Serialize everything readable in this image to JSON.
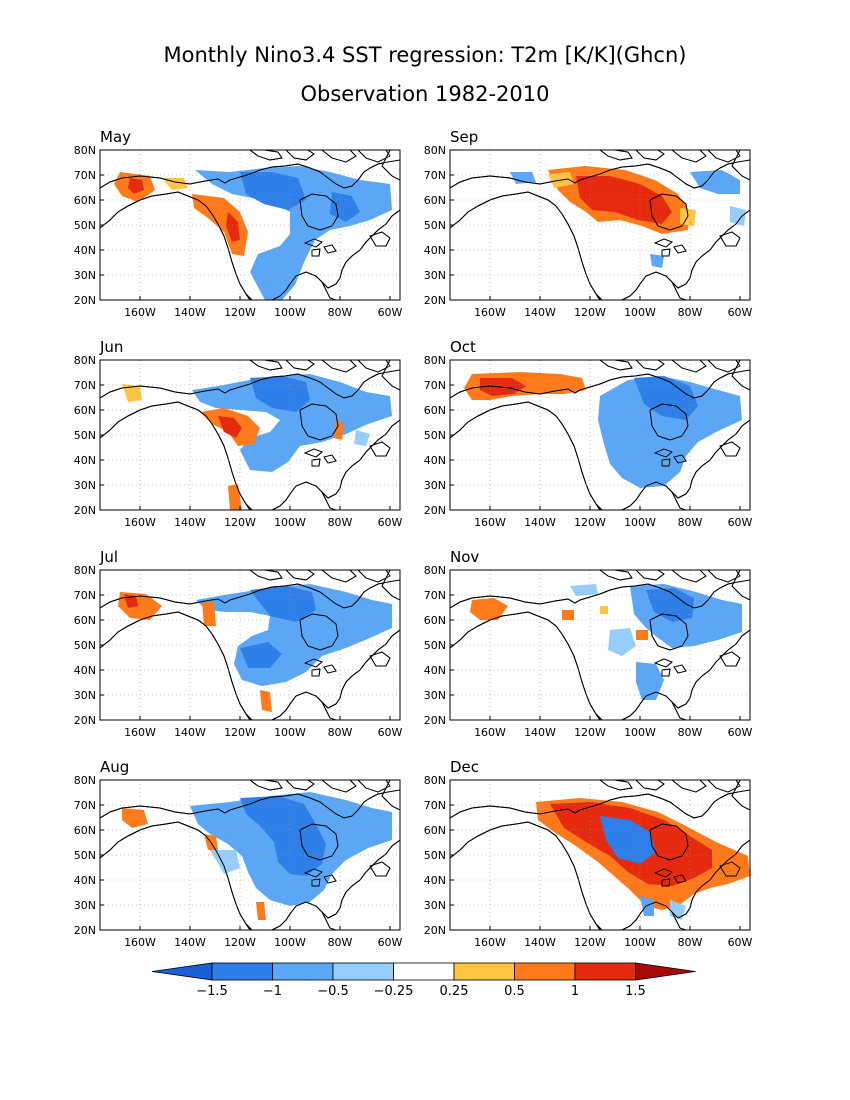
{
  "figure": {
    "title": "Monthly Nino3.4 SST regression: T2m [K/K](Ghcn)",
    "subtitle": "Observation 1982-2010"
  },
  "axes": {
    "lat_labels": [
      "20N",
      "30N",
      "40N",
      "50N",
      "60N",
      "70N",
      "80N"
    ],
    "lon_labels": [
      "160W",
      "140W",
      "120W",
      "100W",
      "80W",
      "60W"
    ]
  },
  "panels": [
    {
      "label": "May"
    },
    {
      "label": "Sep"
    },
    {
      "label": "Jun"
    },
    {
      "label": "Oct"
    },
    {
      "label": "Jul"
    },
    {
      "label": "Nov"
    },
    {
      "label": "Aug"
    },
    {
      "label": "Dec"
    }
  ],
  "colorbar": {
    "labels": [
      "-1.5",
      "-1",
      "-0.5",
      "-0.25",
      "0.25",
      "0.5",
      "1",
      "1.5"
    ],
    "colors": [
      "#1a5fd8",
      "#2f7fe8",
      "#5ca7f5",
      "#96cdfb",
      "#ffffff",
      "#ffc440",
      "#ff7a1a",
      "#e62a10",
      "#a80808"
    ]
  },
  "chart_data": {
    "type": "heatmap",
    "lon_range": [
      -175,
      -55
    ],
    "lat_range": [
      20,
      80
    ],
    "levels": [
      -1.5,
      -1,
      -0.5,
      -0.25,
      0.25,
      0.5,
      1,
      1.5
    ]
  }
}
